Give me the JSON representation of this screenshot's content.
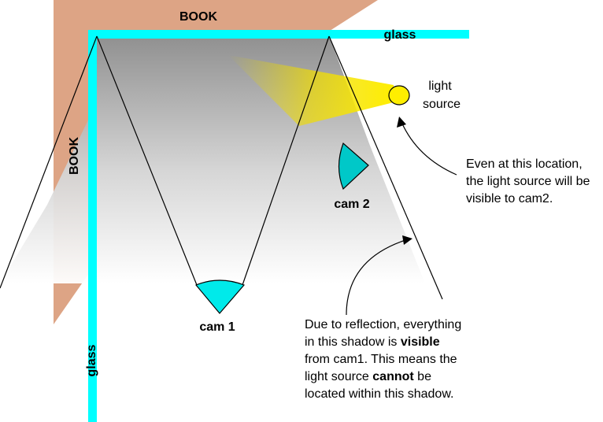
{
  "labels": {
    "book_top": "BOOK",
    "book_side": "BOOK",
    "glass_top": "glass",
    "glass_side": "glass",
    "light_line1": "light",
    "light_line2": "source",
    "cam1": "cam 1",
    "cam2": "cam 2"
  },
  "note_right": {
    "line1": "Even at this location,",
    "line2": "the light source will be",
    "line3": "visible to cam2."
  },
  "note_bottom": {
    "line1": "Due to reflection, everything",
    "line2_pre": "in this shadow is ",
    "line2_bold": "visible",
    "line3": "from cam1.  This means the",
    "line4_pre": "light source ",
    "line4_bold": "cannot",
    "line4_post": " be",
    "line5": "located within this shadow."
  },
  "colors": {
    "book": "#dda485",
    "glass": "#00ffff",
    "camera": "#00e5e5",
    "light": "#ffee00",
    "shadow_top": "#8c8c8c"
  }
}
